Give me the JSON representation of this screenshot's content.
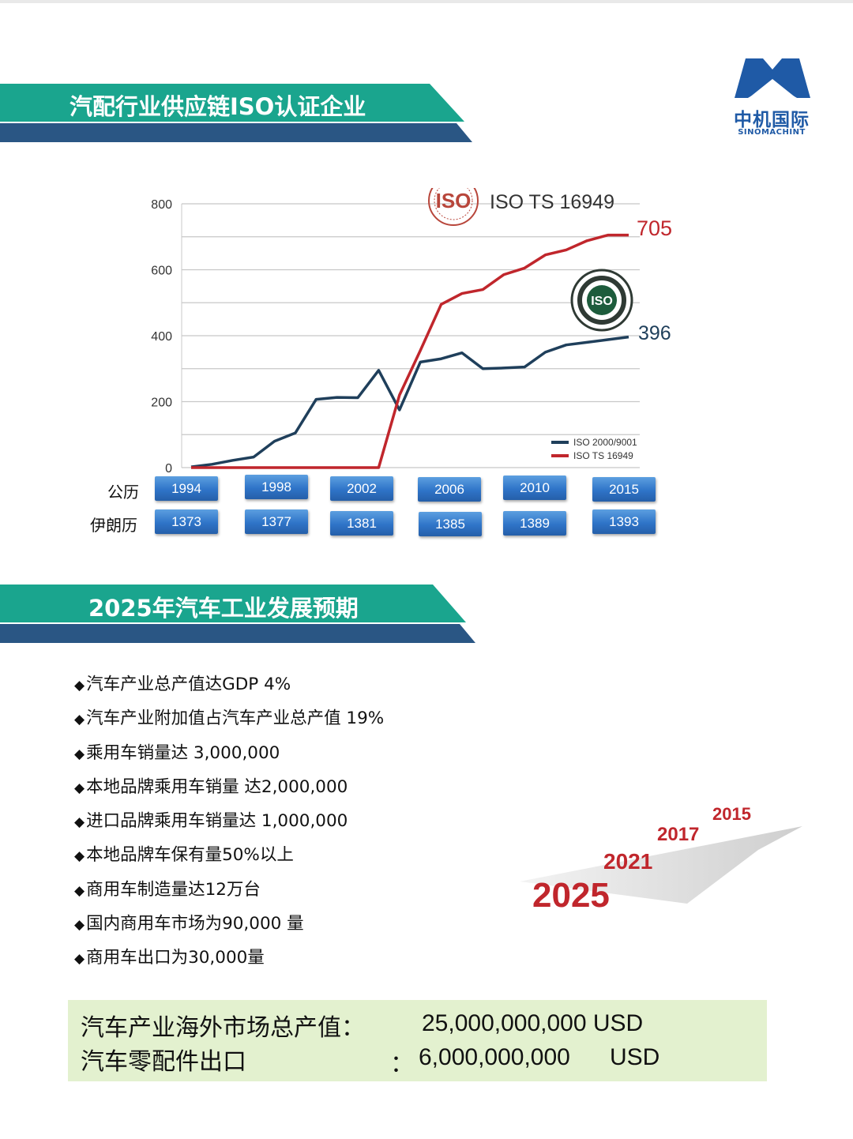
{
  "logo": {
    "cn": "中机国际",
    "en": "SINOMACHINT",
    "color": "#1f5aa6"
  },
  "section1": {
    "title": "汽配行业供应链ISO认证企业"
  },
  "section2": {
    "title": "2025年汽车工业发展预期"
  },
  "chart_data": {
    "type": "line",
    "ylim": [
      0,
      800
    ],
    "yticks": [
      0,
      200,
      400,
      600,
      800
    ],
    "grid": true,
    "legend_position": "bottom-right",
    "x": [
      1994,
      1995,
      1996,
      1997,
      1998,
      1999,
      2000,
      2001,
      2002,
      2003,
      2004,
      2005,
      2006,
      2007,
      2008,
      2009,
      2010,
      2011,
      2012,
      2013,
      2014,
      2015
    ],
    "series": [
      {
        "name": "ISO 2000/9001",
        "color": "#1f3f5b",
        "values": [
          2,
          10,
          22,
          32,
          80,
          105,
          207,
          213,
          212,
          295,
          175,
          320,
          330,
          348,
          300,
          302,
          305,
          350,
          372,
          380,
          388,
          396
        ]
      },
      {
        "name": "ISO TS 16949",
        "color": "#c0262c",
        "values": [
          0,
          0,
          0,
          0,
          0,
          0,
          0,
          0,
          0,
          0,
          220,
          355,
          495,
          528,
          540,
          585,
          605,
          645,
          660,
          688,
          705,
          705
        ]
      }
    ],
    "annotations": {
      "ts_end_label": "705",
      "iso_end_label": "396",
      "badge_caption": "ISO TS 16949"
    }
  },
  "years": {
    "gregorian_label": "公历",
    "iranian_label": "伊朗历",
    "gregorian": [
      "1994",
      "1998",
      "2002",
      "2006",
      "2010",
      "2015"
    ],
    "iranian": [
      "1373",
      "1377",
      "1381",
      "1385",
      "1389",
      "1393"
    ]
  },
  "bullets": [
    "汽车产业总产值达GDP 4%",
    "汽车产业附加值占汽车产业总产值 19%",
    "乘用车销量达 3,000,000",
    "本地品牌乘用车销量 达2,000,000",
    "进口品牌乘用车销量达 1,000,000",
    "本地品牌车保有量50%以上",
    "商用车制造量达12万台",
    "国内商用车市场为90,000 量",
    "商用车出口为30,000量"
  ],
  "bullet_marker": "◆",
  "timeline": {
    "years": [
      "2015",
      "2017",
      "2021",
      "2025"
    ],
    "color": "#c0262c"
  },
  "summary": {
    "row1_label": "汽车产业海外市场总产值：",
    "row1_value": "25,000,000,000 USD",
    "row2_label": "汽车零配件出口",
    "row2_colon": "：",
    "row2_value": "6,000,000,000",
    "row2_unit": "USD",
    "background": "#e3f1cf"
  }
}
